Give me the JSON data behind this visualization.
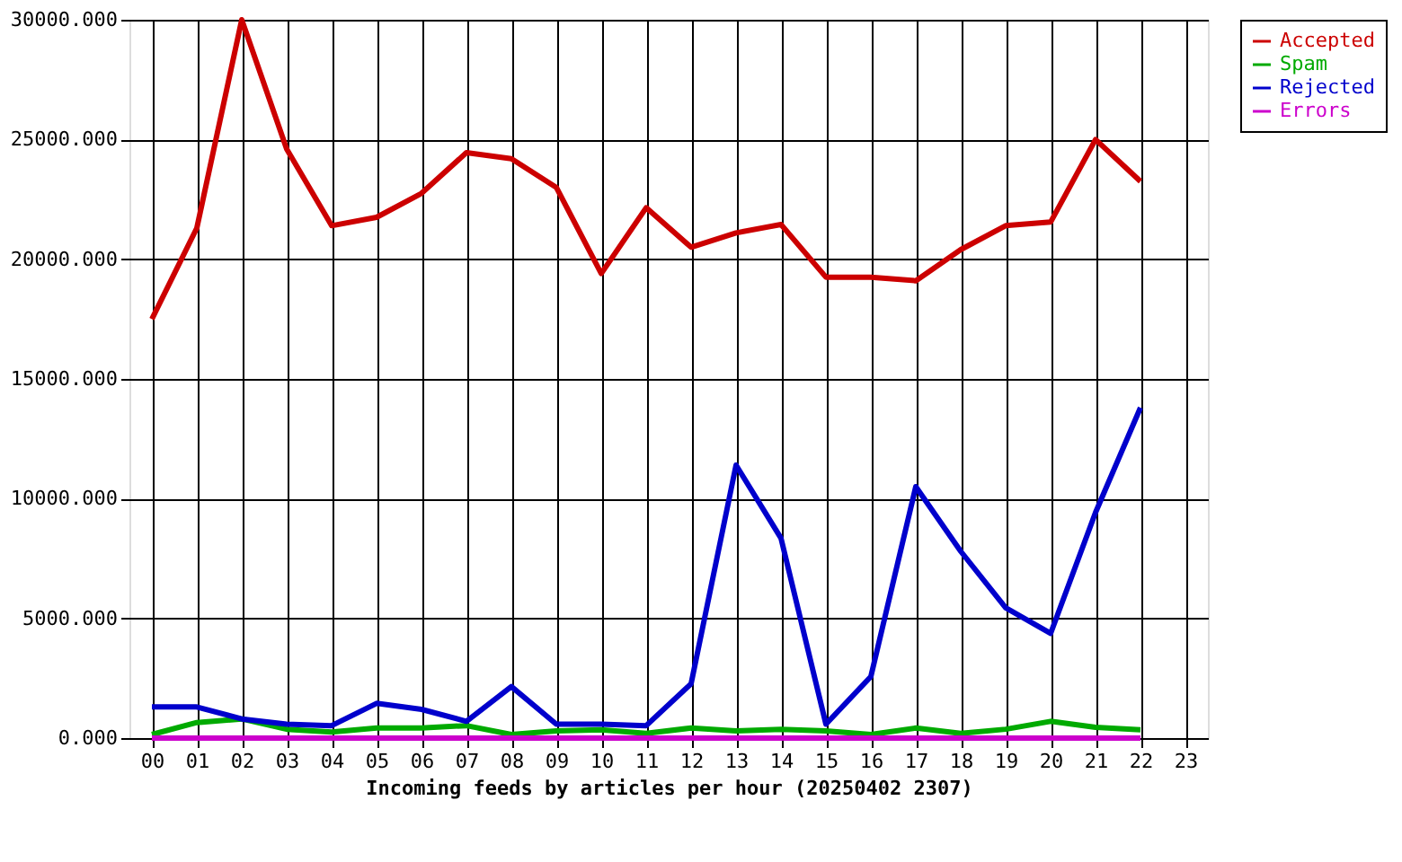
{
  "chart_data": {
    "type": "line",
    "xlabel": "Incoming feeds by articles per hour (20250402 2307)",
    "categories": [
      "00",
      "01",
      "02",
      "03",
      "04",
      "05",
      "06",
      "07",
      "08",
      "09",
      "10",
      "11",
      "12",
      "13",
      "14",
      "15",
      "16",
      "17",
      "18",
      "19",
      "20",
      "21",
      "22",
      "23"
    ],
    "series": [
      {
        "name": "Accepted",
        "color": "#cc0000",
        "values": [
          17500,
          21300,
          30000,
          24600,
          21400,
          21750,
          22750,
          24450,
          24200,
          23000,
          19400,
          22150,
          20500,
          21100,
          21450,
          19250,
          19250,
          19100,
          20400,
          21400,
          21550,
          25000,
          23250,
          null
        ]
      },
      {
        "name": "Spam",
        "color": "#00aa00",
        "values": [
          150,
          650,
          800,
          370,
          250,
          420,
          420,
          520,
          150,
          300,
          350,
          200,
          420,
          300,
          370,
          300,
          150,
          420,
          200,
          370,
          700,
          450,
          350,
          null
        ]
      },
      {
        "name": "Rejected",
        "color": "#0000cc",
        "values": [
          1300,
          1300,
          800,
          580,
          520,
          1450,
          1200,
          700,
          2150,
          580,
          580,
          520,
          2270,
          11400,
          8350,
          580,
          2570,
          10500,
          7800,
          5440,
          4370,
          9420,
          13800,
          null
        ]
      },
      {
        "name": "Errors",
        "color": "#cc00cc",
        "values": [
          0,
          0,
          0,
          0,
          0,
          0,
          0,
          0,
          0,
          0,
          0,
          0,
          0,
          0,
          0,
          0,
          0,
          0,
          0,
          0,
          0,
          0,
          0,
          null
        ]
      }
    ],
    "ylim": [
      0,
      30000
    ],
    "yticks": [
      {
        "value": 0,
        "label": "0.000"
      },
      {
        "value": 5000,
        "label": "5000.000"
      },
      {
        "value": 10000,
        "label": "10000.000"
      },
      {
        "value": 15000,
        "label": "15000.000"
      },
      {
        "value": 20000,
        "label": "20000.000"
      },
      {
        "value": 25000,
        "label": "25000.000"
      },
      {
        "value": 30000,
        "label": "30000.000"
      }
    ],
    "grid": true,
    "legend": "top right",
    "marker": "none",
    "line_style": "solid"
  }
}
